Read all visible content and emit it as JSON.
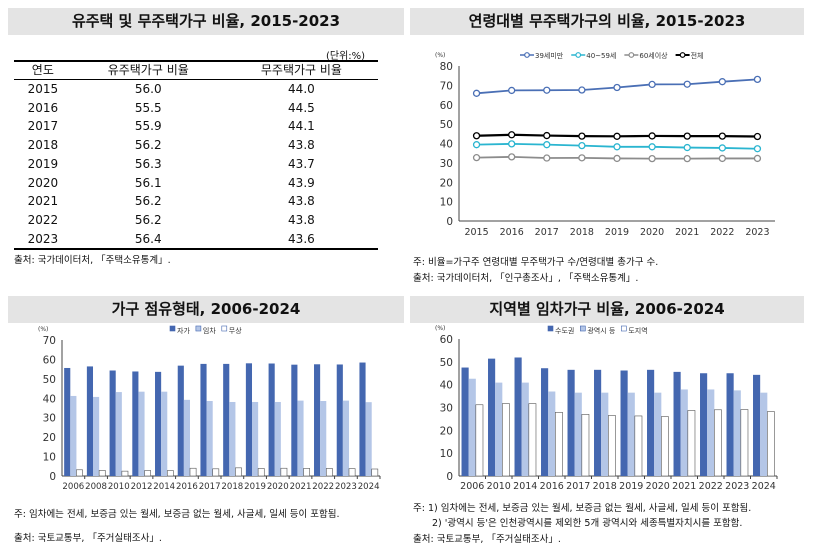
{
  "panel1": {
    "title": "유주택 및 무주택가구 비율, 2015-2023",
    "unit": "(단위:%)",
    "headers": [
      "연도",
      "유주택가구 비율",
      "무주택가구 비율"
    ],
    "rows": [
      [
        "2015",
        "56.0",
        "44.0"
      ],
      [
        "2016",
        "55.5",
        "44.5"
      ],
      [
        "2017",
        "55.9",
        "44.1"
      ],
      [
        "2018",
        "56.2",
        "43.8"
      ],
      [
        "2019",
        "56.3",
        "43.7"
      ],
      [
        "2020",
        "56.1",
        "43.9"
      ],
      [
        "2021",
        "56.2",
        "43.8"
      ],
      [
        "2022",
        "56.2",
        "43.8"
      ],
      [
        "2023",
        "56.4",
        "43.6"
      ]
    ],
    "source": "출처: 국가데이터처, 「주택소유통계」."
  },
  "panel2": {
    "title": "연령대별 무주택가구의 비율, 2015-2023",
    "note": "주: 비율=가구주 연령대별 무주택가구 수/연령대별 총가구 수.",
    "source": "출처: 국가데이터처, 「인구총조사」, 「주택소유통계」."
  },
  "panel3": {
    "title": "가구 점유형태, 2006-2024",
    "note": "주: 임차에는 전세, 보증금 있는 월세, 보증금 없는 월세, 사글세, 일세 등이 포함됨.",
    "source": "출처: 국토교통부, 「주거실태조사」."
  },
  "panel4": {
    "title": "지역별 임차가구 비율, 2006-2024",
    "note1": "주: 1) 임차에는 전세, 보증금 있는 월세, 보증금 없는 월세, 사글세, 일세 등이 포함됨.",
    "note2": "2) '광역시 등'은 인천광역시를 제외한 5개 광역시와 세종특별자치시를 포함함.",
    "source": "출처: 국토교통부, 「주거실태조사」."
  },
  "chart_data": [
    {
      "type": "line",
      "unit": "(%)",
      "ylim": [
        0,
        80
      ],
      "yticks": [
        0,
        10,
        20,
        30,
        40,
        50,
        60,
        70,
        80
      ],
      "categories": [
        "2015",
        "2016",
        "2017",
        "2018",
        "2019",
        "2020",
        "2021",
        "2022",
        "2023"
      ],
      "legend": "top",
      "series": [
        {
          "name": "39세미만",
          "color": "#4a6fb5",
          "values": [
            65.9,
            67.4,
            67.5,
            67.6,
            68.9,
            70.5,
            70.6,
            71.9,
            73.1
          ]
        },
        {
          "name": "40~59세",
          "color": "#2ab5d0",
          "values": [
            39.4,
            39.8,
            39.4,
            38.9,
            38.3,
            38.3,
            37.9,
            37.7,
            37.3
          ]
        },
        {
          "name": "60세이상",
          "color": "#8c8c8c",
          "values": [
            32.7,
            33.1,
            32.5,
            32.6,
            32.3,
            32.2,
            32.2,
            32.3,
            32.3
          ]
        },
        {
          "name": "전체",
          "color": "#000000",
          "values": [
            44.0,
            44.5,
            44.1,
            43.8,
            43.7,
            43.9,
            43.8,
            43.8,
            43.6
          ]
        }
      ]
    },
    {
      "type": "bar",
      "unit": "(%)",
      "ylim": [
        0,
        70
      ],
      "yticks": [
        0,
        10,
        20,
        30,
        40,
        50,
        60,
        70
      ],
      "categories": [
        "2006",
        "2008",
        "2010",
        "2012",
        "2014",
        "2016",
        "2017",
        "2018",
        "2019",
        "2020",
        "2021",
        "2022",
        "2023",
        "2024"
      ],
      "legend": "top",
      "series": [
        {
          "name": "자가",
          "color": "#4467b0",
          "values": [
            55.6,
            56.4,
            54.3,
            53.8,
            53.6,
            56.8,
            57.7,
            57.7,
            58.0,
            57.9,
            57.3,
            57.5,
            57.4,
            58.4
          ]
        },
        {
          "name": "임차",
          "color": "#b4c6e7",
          "values": [
            41.2,
            40.7,
            43.2,
            43.4,
            43.4,
            39.2,
            38.6,
            38.1,
            38.1,
            38.1,
            38.8,
            38.6,
            38.8,
            38.0
          ]
        },
        {
          "name": "무상",
          "color": "#ffffff",
          "values": [
            3.2,
            2.9,
            2.5,
            2.8,
            2.8,
            4.0,
            3.7,
            4.2,
            3.9,
            4.0,
            3.9,
            3.9,
            3.8,
            3.6
          ]
        }
      ]
    },
    {
      "type": "bar",
      "unit": "(%)",
      "ylim": [
        0,
        60
      ],
      "yticks": [
        0,
        10,
        20,
        30,
        40,
        50,
        60
      ],
      "categories": [
        "2006",
        "2010",
        "2014",
        "2016",
        "2017",
        "2018",
        "2019",
        "2020",
        "2021",
        "2022",
        "2023",
        "2024"
      ],
      "legend": "top",
      "series": [
        {
          "name": "수도권",
          "color": "#4467b0",
          "values": [
            47.5,
            51.4,
            51.9,
            47.2,
            46.5,
            46.5,
            46.2,
            46.5,
            45.6,
            45.0,
            45.0,
            44.3
          ]
        },
        {
          "name": "광역시 등",
          "color": "#b4c6e7",
          "values": [
            42.6,
            40.9,
            40.9,
            37.0,
            36.5,
            36.5,
            36.5,
            36.5,
            37.9,
            37.9,
            37.5,
            36.5
          ]
        },
        {
          "name": "도지역",
          "color": "#ffffff",
          "values": [
            31.2,
            31.7,
            31.7,
            27.9,
            27.0,
            26.5,
            26.3,
            26.0,
            28.7,
            29.0,
            29.1,
            28.2
          ]
        }
      ]
    }
  ]
}
